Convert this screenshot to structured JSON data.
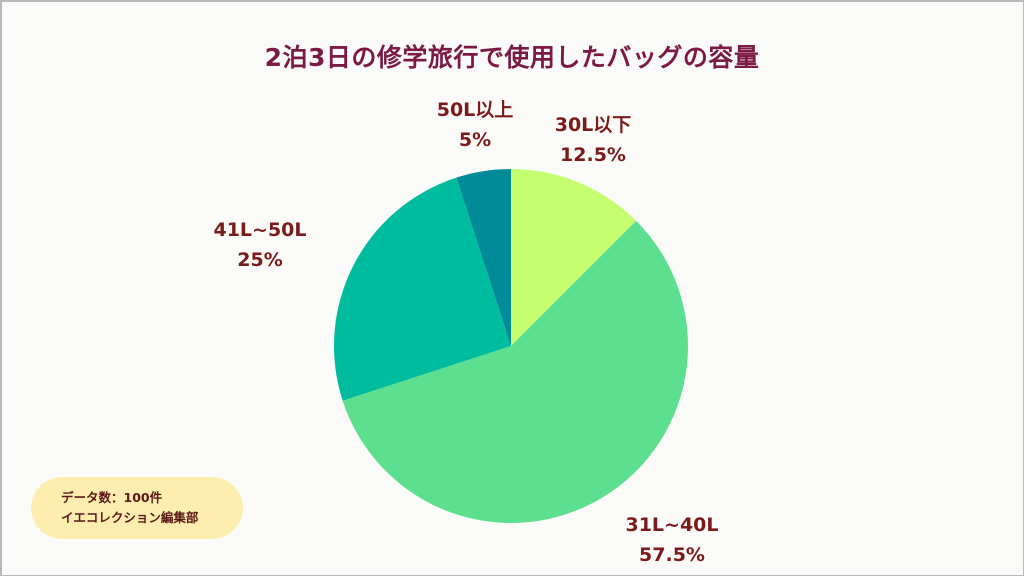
{
  "title": "2泊3日の修学旅行で使用したバッグの容量",
  "labels": {
    "s30": {
      "name": "30L以下",
      "pct": "12.5%"
    },
    "s40": {
      "name": "31L~40L",
      "pct": "57.5%"
    },
    "s50": {
      "name": "41L~50L",
      "pct": "25%"
    },
    "s51": {
      "name": "50L以上",
      "pct": "5%"
    }
  },
  "note": {
    "line1": "データ数：100件",
    "line2": "イエコレクション編集部"
  },
  "colors": {
    "title": "#7b1a45",
    "label": "#7a1a1a",
    "note_bg": "#fdeeb0",
    "background": "#fafaf8"
  },
  "chart_data": {
    "type": "pie",
    "title": "2泊3日の修学旅行で使用したバッグの容量",
    "categories": [
      "30L以下",
      "31L~40L",
      "41L~50L",
      "50L以上"
    ],
    "values": [
      12.5,
      57.5,
      25,
      5
    ],
    "unit": "%",
    "colors": [
      "#c4fd70",
      "#5cdf8e",
      "#00bc9f",
      "#008b99"
    ],
    "start_angle": "12 o'clock",
    "direction": "clockwise",
    "sample_size": 100,
    "annotation": "データ数：100件 / イエコレクション編集部"
  }
}
